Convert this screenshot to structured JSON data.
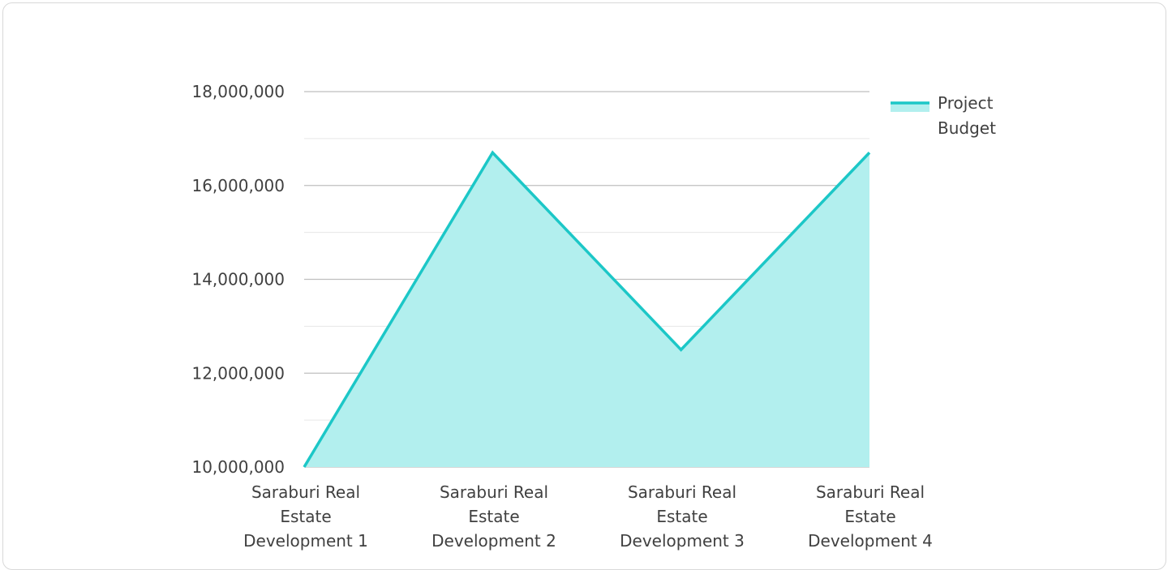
{
  "chart_data": {
    "type": "area",
    "categories": [
      "Saraburi Real Estate Development 1",
      "Saraburi Real Estate Development 2",
      "Saraburi Real Estate Development 3",
      "Saraburi Real Estate Development 4"
    ],
    "category_lines": [
      [
        "Saraburi Real",
        "Estate",
        "Development 1"
      ],
      [
        "Saraburi Real",
        "Estate",
        "Development 2"
      ],
      [
        "Saraburi Real",
        "Estate",
        "Development 3"
      ],
      [
        "Saraburi Real",
        "Estate",
        "Development 4"
      ]
    ],
    "series": [
      {
        "name": "Project Budget",
        "values": [
          10000000,
          16700000,
          12500000,
          16700000
        ]
      }
    ],
    "legend_lines": [
      "Project",
      "Budget"
    ],
    "y_ticks": [
      10000000,
      12000000,
      14000000,
      16000000,
      18000000
    ],
    "y_tick_labels": [
      "10,000,000",
      "12,000,000",
      "14,000,000",
      "16,000,000",
      "18,000,000"
    ],
    "ylim": [
      10000000,
      18000000
    ],
    "grid": true,
    "legend_position": "top-right",
    "title": "",
    "xlabel": "",
    "ylabel": "",
    "colors": {
      "line": "#1cc7c7",
      "fill": "#b2efee",
      "grid_major": "#bfbfbf",
      "grid_minor": "#e6e6e6"
    }
  }
}
